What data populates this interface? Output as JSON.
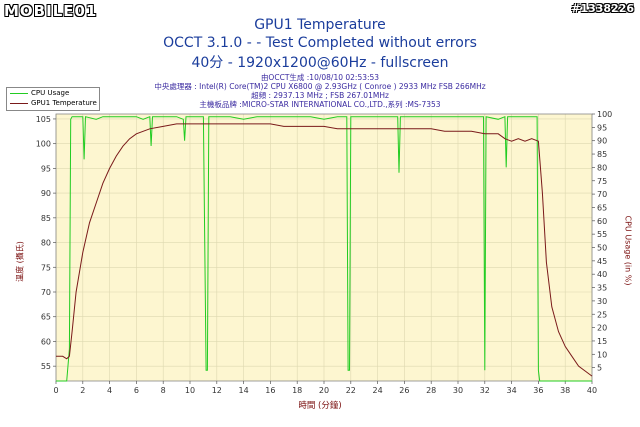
{
  "watermark": "MOBILE01",
  "post_id": "#1338226",
  "title": "GPU1 Temperature",
  "subtitle1": "OCCT 3.1.0 -  - Test Completed without errors",
  "subtitle2": "40分 - 1920x1200@60Hz - fullscreen",
  "info_lines": [
    "由OCCT生成 :10/08/10 02:53:53",
    "中央處理器 : Intel(R) Core(TM)2 CPU X6800 @ 2.93GHz ( Conroe ) 2933 MHz FSB 266MHz",
    "超頻 : 2937.13 MHz ; FSB 267.01MHz",
    "主機板品牌 :MICRO-STAR INTERNATIONAL CO.,LTD.,系列 :MS-7353"
  ],
  "colors": {
    "cpu_usage": "#22cc22",
    "gpu_temp": "#7a1a1a",
    "plot_bg": "#fdf6d0",
    "grid": "#ddd8b0",
    "title": "#1b3d9c"
  },
  "chart_data": {
    "type": "line",
    "title": "GPU1 Temperature",
    "xlabel": "時間 (分鐘)",
    "ylabel_left": "溫度 (攝氏)",
    "ylabel_right": "CPU Usage (in %)",
    "xlim": [
      0,
      40
    ],
    "ylim_left": [
      52,
      106
    ],
    "ylim_right": [
      0,
      100
    ],
    "x_ticks": [
      0,
      2,
      4,
      6,
      8,
      10,
      12,
      14,
      16,
      18,
      20,
      22,
      24,
      26,
      28,
      30,
      32,
      34,
      36,
      38,
      40
    ],
    "y_ticks_left": [
      55,
      60,
      65,
      70,
      75,
      80,
      85,
      90,
      95,
      100,
      105
    ],
    "y_ticks_right": [
      5,
      10,
      15,
      20,
      25,
      30,
      35,
      40,
      45,
      50,
      55,
      60,
      65,
      70,
      75,
      80,
      85,
      90,
      95,
      100
    ],
    "legend": "top-left",
    "grid": true,
    "series": [
      {
        "name": "CPU Usage",
        "axis": "right",
        "color": "#22cc22",
        "x": [
          0,
          0.8,
          1.0,
          1.1,
          1.2,
          2.0,
          2.1,
          2.2,
          3.0,
          3.5,
          4.0,
          5.0,
          6.0,
          6.5,
          7.0,
          7.1,
          7.2,
          8.0,
          9.0,
          9.5,
          9.6,
          9.7,
          10.0,
          11.0,
          11.2,
          11.3,
          11.4,
          12.0,
          13.0,
          14.0,
          15.0,
          16.0,
          17.0,
          18.0,
          19.0,
          20.0,
          21.0,
          21.7,
          21.8,
          21.9,
          22.0,
          23.0,
          24.0,
          25.0,
          25.5,
          25.6,
          25.7,
          26.0,
          27.0,
          28.0,
          29.0,
          30.0,
          31.0,
          31.9,
          32.0,
          32.1,
          33.0,
          33.5,
          33.6,
          33.7,
          34.0,
          35.0,
          35.5,
          35.9,
          36.0,
          36.1,
          36.3,
          40
        ],
        "y": [
          0,
          0,
          12,
          98,
          99,
          99,
          83,
          99,
          98,
          99,
          99,
          99,
          99,
          98,
          99,
          88,
          99,
          99,
          99,
          98,
          90,
          99,
          99,
          99,
          4,
          4,
          99,
          99,
          99,
          98,
          99,
          99,
          99,
          99,
          99,
          98,
          99,
          99,
          4,
          4,
          99,
          99,
          99,
          99,
          99,
          78,
          99,
          99,
          99,
          99,
          99,
          99,
          99,
          99,
          4,
          99,
          98,
          99,
          80,
          99,
          99,
          99,
          99,
          99,
          4,
          0,
          0,
          0
        ]
      },
      {
        "name": "GPU1 Temperature",
        "axis": "left",
        "color": "#7a1a1a",
        "x": [
          0,
          0.5,
          0.8,
          1.0,
          1.2,
          1.5,
          2.0,
          2.5,
          3.0,
          3.5,
          4.0,
          4.5,
          5.0,
          5.5,
          6.0,
          7.0,
          8.0,
          9.0,
          10.0,
          11.0,
          12.0,
          13.0,
          14.0,
          15.0,
          16.0,
          17.0,
          18.0,
          19.0,
          20.0,
          21.0,
          22.0,
          23.0,
          24.0,
          25.0,
          26.0,
          27.0,
          28.0,
          29.0,
          30.0,
          31.0,
          32.0,
          33.0,
          33.5,
          34.0,
          34.5,
          35.0,
          35.5,
          36.0,
          36.3,
          36.6,
          37.0,
          37.5,
          38.0,
          38.5,
          39.0,
          39.5,
          40.0
        ],
        "y": [
          57,
          57,
          56.5,
          57,
          62,
          70,
          78,
          84,
          88,
          92,
          95,
          97.5,
          99.5,
          101,
          102,
          103,
          103.5,
          104,
          104,
          104,
          104,
          104,
          104,
          104,
          104,
          103.5,
          103.5,
          103.5,
          103.5,
          103,
          103,
          103,
          103,
          103,
          103,
          103,
          103,
          102.5,
          102.5,
          102.5,
          102,
          102,
          101,
          100.5,
          101,
          100.5,
          101,
          100.5,
          90,
          76,
          67,
          62,
          59,
          57,
          55,
          54,
          53
        ]
      }
    ]
  }
}
